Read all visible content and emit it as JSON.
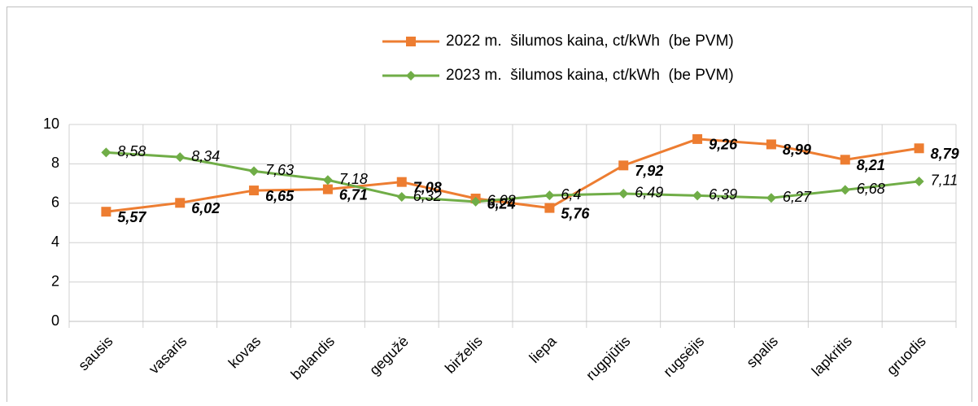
{
  "chart_data": {
    "type": "line",
    "categories": [
      "sausis",
      "vasaris",
      "kovas",
      "balandis",
      "gegužė",
      "birželis",
      "liepa",
      "rugpjūtis",
      "rugsėjis",
      "spalis",
      "lapkritis",
      "gruodis"
    ],
    "series": [
      {
        "name": "2022 m.  šilumos kaina, ct/kWh  (be PVM)",
        "color": "#ed7d31",
        "marker": "square",
        "values": [
          5.57,
          6.02,
          6.65,
          6.71,
          7.08,
          6.24,
          5.76,
          7.92,
          9.26,
          8.99,
          8.21,
          8.79
        ],
        "value_labels": [
          "5,57",
          "6,02",
          "6,65",
          "6,71",
          "7,08",
          "6,24",
          "5,76",
          "7,92",
          "9,26",
          "8,99",
          "8,21",
          "8,79"
        ]
      },
      {
        "name": "2023 m.  šilumos kaina, ct/kWh  (be PVM)",
        "color": "#70ad47",
        "marker": "diamond",
        "values": [
          8.58,
          8.34,
          7.63,
          7.18,
          6.32,
          6.08,
          6.4,
          6.49,
          6.39,
          6.27,
          6.68,
          7.11
        ],
        "value_labels": [
          "8,58",
          "8,34",
          "7,63",
          "7,18",
          "6,32",
          "6,08",
          "6,4",
          "6,49",
          "6,39",
          "6,27",
          "6,68",
          "7,11"
        ]
      }
    ],
    "ylim": [
      0,
      10
    ],
    "yticks": [
      0,
      2,
      4,
      6,
      8,
      10
    ],
    "grid": true,
    "legend": "top"
  }
}
